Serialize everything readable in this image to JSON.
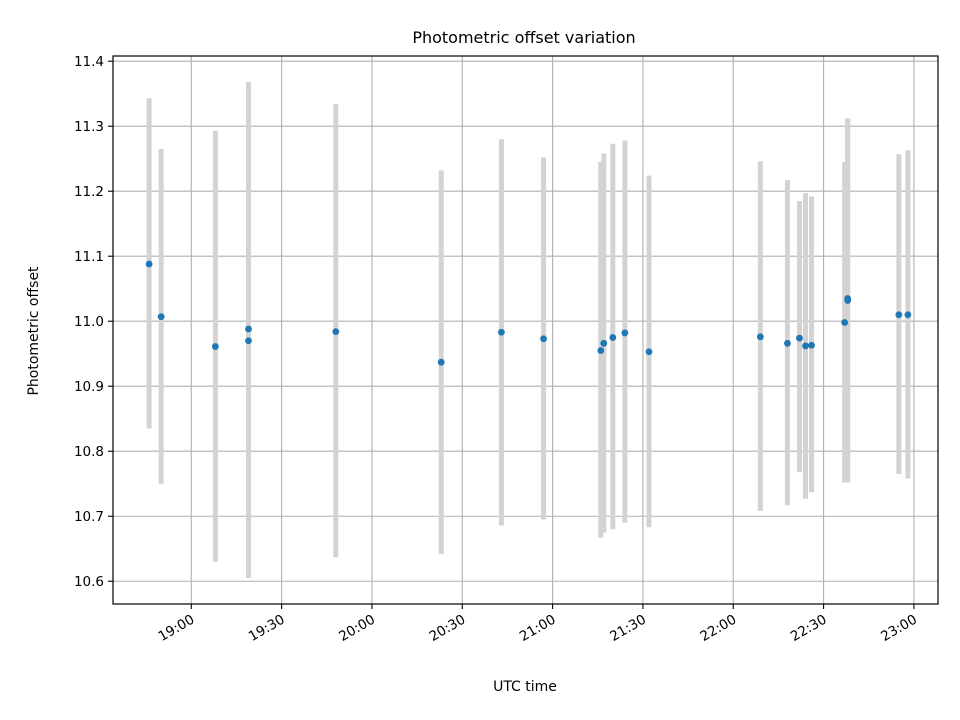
{
  "chart_data": {
    "type": "scatter",
    "title": "Photometric offset variation",
    "xlabel": "UTC time",
    "ylabel": "Photometric offset",
    "xlim": [
      "18:34",
      "23:08"
    ],
    "ylim": [
      10.565,
      11.408
    ],
    "xticks": [
      "19:00",
      "19:30",
      "20:00",
      "20:30",
      "21:00",
      "21:30",
      "22:00",
      "22:30",
      "23:00"
    ],
    "yticks": [
      "10.6",
      "10.7",
      "10.8",
      "10.9",
      "11.0",
      "11.1",
      "11.2",
      "11.3",
      "11.4"
    ],
    "grid": true,
    "point_color": "#1f77b4",
    "errorbar_color": "#d3d3d3",
    "points": [
      {
        "x": "18:46",
        "y": 11.088,
        "ylow": 10.835,
        "yhigh": 11.343
      },
      {
        "x": "18:50",
        "y": 11.007,
        "ylow": 10.75,
        "yhigh": 11.265
      },
      {
        "x": "19:08",
        "y": 10.961,
        "ylow": 10.63,
        "yhigh": 11.293
      },
      {
        "x": "19:19",
        "y": 10.988,
        "ylow": 10.605,
        "yhigh": 11.368
      },
      {
        "x": "19:19",
        "y": 10.97,
        "ylow": 10.605,
        "yhigh": 11.335
      },
      {
        "x": "19:48",
        "y": 10.984,
        "ylow": 10.637,
        "yhigh": 11.334
      },
      {
        "x": "20:23",
        "y": 10.937,
        "ylow": 10.642,
        "yhigh": 11.232
      },
      {
        "x": "20:43",
        "y": 10.983,
        "ylow": 10.686,
        "yhigh": 11.28
      },
      {
        "x": "20:57",
        "y": 10.973,
        "ylow": 10.695,
        "yhigh": 11.252
      },
      {
        "x": "21:16",
        "y": 10.955,
        "ylow": 10.667,
        "yhigh": 11.245
      },
      {
        "x": "21:17",
        "y": 10.966,
        "ylow": 10.675,
        "yhigh": 11.258
      },
      {
        "x": "21:20",
        "y": 10.975,
        "ylow": 10.68,
        "yhigh": 11.273
      },
      {
        "x": "21:24",
        "y": 10.982,
        "ylow": 10.69,
        "yhigh": 11.278
      },
      {
        "x": "21:32",
        "y": 10.953,
        "ylow": 10.683,
        "yhigh": 11.224
      },
      {
        "x": "22:09",
        "y": 10.976,
        "ylow": 10.708,
        "yhigh": 11.246
      },
      {
        "x": "22:18",
        "y": 10.966,
        "ylow": 10.717,
        "yhigh": 11.217
      },
      {
        "x": "22:22",
        "y": 10.974,
        "ylow": 10.768,
        "yhigh": 11.185
      },
      {
        "x": "22:24",
        "y": 10.962,
        "ylow": 10.727,
        "yhigh": 11.197
      },
      {
        "x": "22:26",
        "y": 10.963,
        "ylow": 10.737,
        "yhigh": 11.192
      },
      {
        "x": "22:37",
        "y": 10.998,
        "ylow": 10.752,
        "yhigh": 11.245
      },
      {
        "x": "22:38",
        "y": 11.035,
        "ylow": 10.752,
        "yhigh": 11.312
      },
      {
        "x": "22:38",
        "y": 11.032,
        "ylow": 10.755,
        "yhigh": 11.31
      },
      {
        "x": "22:55",
        "y": 11.01,
        "ylow": 10.765,
        "yhigh": 11.257
      },
      {
        "x": "22:58",
        "y": 11.01,
        "ylow": 10.758,
        "yhigh": 11.263
      }
    ]
  }
}
